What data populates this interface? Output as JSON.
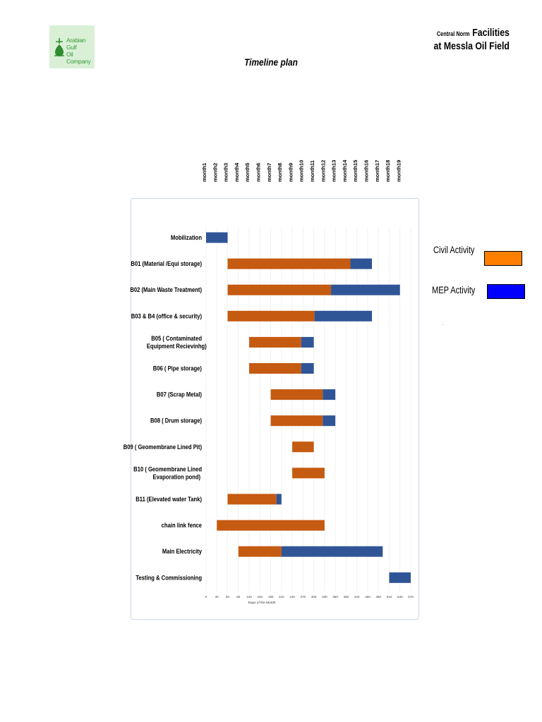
{
  "logo": {
    "text_line1": "Arabian Gulf",
    "text_line2": "Oil Company"
  },
  "header": {
    "line1_small": "Central Norm",
    "line1_big": "Facilities",
    "line2": "at Messla Oil Field"
  },
  "page_title": "Timeline plan",
  "months": [
    "month1",
    "month2",
    "month3",
    "month4",
    "month5",
    "month6",
    "month7",
    "month8",
    "month9",
    "month10",
    "month11",
    "month12",
    "month13",
    "month14",
    "month15",
    "month16",
    "month17",
    "month18",
    "month19"
  ],
  "legend": {
    "civil_label": "Civil Activity",
    "mep_label": "MEP Activity",
    "civil_color": "#ff8000",
    "mep_color": "#0000ff"
  },
  "footnote": ".",
  "chart_data": {
    "type": "bar",
    "orientation": "horizontal",
    "stacked": true,
    "xlabel": "Days of the Month",
    "xlim": [
      0,
      570
    ],
    "xticks": [
      0,
      30,
      60,
      90,
      120,
      150,
      180,
      210,
      240,
      270,
      300,
      330,
      360,
      390,
      420,
      450,
      480,
      510,
      540,
      570
    ],
    "grid": true,
    "colors": {
      "offset": "none",
      "civil": "#c55a11",
      "mep": "#2f5597"
    },
    "categories": [
      "Mobilization",
      "B01 (Material /Equi storage)",
      "B02 (Main Waste Treatment)",
      "B03 & B4 (office & security)",
      "B05 ( Contaminated Equipment Recievinhg)",
      "B06 ( Pipe storage)",
      "B07 (Scrap Metal)",
      "B08 ( Drum storage)",
      "B09 ( Geomembrane Lined Pit)",
      "B10 ( Geomembrane Lined Evaporation pond)",
      "B11 (Elevated water Tank)",
      "chain link fence",
      "Main Electricity",
      "Testing & Commissioning"
    ],
    "series": [
      {
        "key": "offset",
        "values": [
          0,
          60,
          60,
          60,
          120,
          120,
          180,
          180,
          240,
          240,
          60,
          30,
          90,
          510
        ]
      },
      {
        "key": "civil",
        "values": [
          0,
          342,
          288,
          242,
          145,
          145,
          145,
          145,
          60,
          90,
          136,
          300,
          120,
          0
        ]
      },
      {
        "key": "mep",
        "values": [
          60,
          60,
          192,
          160,
          35,
          35,
          35,
          35,
          0,
          0,
          14,
          0,
          282,
          60
        ]
      }
    ]
  }
}
